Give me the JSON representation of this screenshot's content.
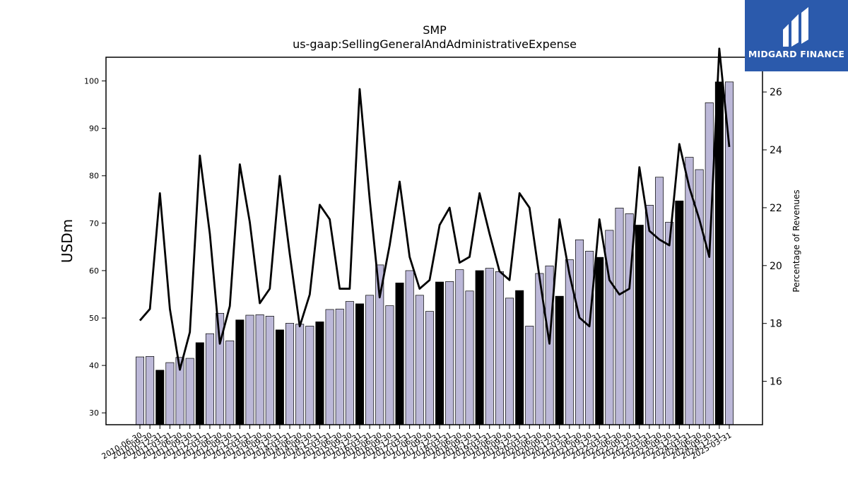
{
  "brand": {
    "name": "MIDGARD FINANCE",
    "background": "#2b5aac"
  },
  "chart_data": {
    "type": "bar",
    "title": "SMP",
    "subtitle": "us-gaap:SellingGeneralAndAdministrativeExpense",
    "ylabel": "USDm",
    "y2label": "Percentage of Revenues",
    "ylim": [
      27.5,
      105
    ],
    "y2lim": [
      14.5,
      27.2
    ],
    "yticks": [
      30,
      40,
      50,
      60,
      70,
      80,
      90,
      100
    ],
    "y2ticks": [
      16,
      18,
      20,
      22,
      24,
      26
    ],
    "colors": {
      "bar": "#bcb8d8",
      "bar_annual": "#000000",
      "line": "#000000"
    },
    "grid": false,
    "categories": [
      "2010-06-30",
      "2010-09-30",
      "2010-12-31",
      "2011-03-31",
      "2011-06-30",
      "2011-09-30",
      "2011-12-31",
      "2012-03-31",
      "2012-06-30",
      "2012-09-30",
      "2012-12-31",
      "2013-03-31",
      "2013-06-30",
      "2013-09-30",
      "2013-12-31",
      "2014-03-31",
      "2014-06-30",
      "2014-09-30",
      "2014-12-31",
      "2015-03-31",
      "2015-06-30",
      "2015-09-30",
      "2015-12-31",
      "2016-03-31",
      "2016-06-30",
      "2016-09-30",
      "2016-12-31",
      "2017-03-31",
      "2017-06-30",
      "2017-09-30",
      "2017-12-31",
      "2018-03-31",
      "2018-06-30",
      "2018-09-30",
      "2018-12-31",
      "2019-03-31",
      "2019-06-30",
      "2019-09-30",
      "2019-12-31",
      "2020-03-31",
      "2020-06-30",
      "2020-09-30",
      "2020-12-31",
      "2021-03-31",
      "2021-06-30",
      "2021-09-30",
      "2021-12-31",
      "2022-03-31",
      "2022-06-30",
      "2022-09-30",
      "2022-12-31",
      "2023-03-31",
      "2023-06-30",
      "2023-09-30",
      "2023-12-31",
      "2024-03-31",
      "2024-06-30",
      "2024-09-30",
      "2024-12-31",
      "2025-03-31"
    ],
    "tick_labels": [
      "2010-06-30",
      "2010-09-30",
      "2010-12-31",
      "2011-03-31",
      "2011-06-30",
      "2011-09-30",
      "2011-12-31",
      "2012-03-31",
      "2012-06-30",
      "2012-09-30",
      "2012-12-31",
      "2013-03-31",
      "2013-06-30",
      "2013-09-30",
      "2013-12-31",
      "2014-03-31",
      "2014-06-30",
      "2014-09-30",
      "2014-12-31",
      "2015-03-31",
      "2015-06-30",
      "2015-09-30",
      "2015-12-31",
      "2016-03-31",
      "2016-06-30",
      "2016-09-30",
      "2016-12-31",
      "2017-03-31",
      "2017-06-30",
      "2017-09-30",
      "2017-12-31",
      "2018-03-31",
      "2018-06-30",
      "2018-09-30",
      "2018-12-31",
      "2019-03-31",
      "2019-06-30",
      "2019-09-30",
      "2019-12-31",
      "2020-03-31",
      "2020-06-30",
      "2020-09-30",
      "2020-12-31",
      "2021-03-31",
      "2021-06-30",
      "2021-09-30",
      "2021-12-31",
      "2022-03-31",
      "2022-06-30",
      "2022-09-30",
      "2022-12-31",
      "2023-03-31",
      "2023-06-30",
      "2023-09-30",
      "2023-12-31",
      "2024-03-31",
      "2024-06-30",
      "2024-09-30",
      "2024-12-31",
      "2025-03-31"
    ],
    "series": [
      {
        "type": "bar",
        "axis": "left",
        "values": [
          41.8,
          41.9,
          39.0,
          40.6,
          41.7,
          41.5,
          44.8,
          46.7,
          51.0,
          45.2,
          49.6,
          50.6,
          50.7,
          50.4,
          47.5,
          48.9,
          48.7,
          48.3,
          49.2,
          51.8,
          51.9,
          53.5,
          53.0,
          54.8,
          61.2,
          52.6,
          57.4,
          60.0,
          54.8,
          51.4,
          57.6,
          57.7,
          60.2,
          55.7,
          60.0,
          60.5,
          59.8,
          54.2,
          55.8,
          48.3,
          59.4,
          61.0,
          54.6,
          62.3,
          66.5,
          64.1,
          62.8,
          68.5,
          73.2,
          72.0,
          69.6,
          73.8,
          79.7,
          70.2,
          74.7,
          83.9,
          81.3,
          95.4,
          99.8,
          99.8
        ]
      },
      {
        "type": "line",
        "axis": "right",
        "values": [
          18.1,
          18.5,
          22.5,
          18.5,
          16.4,
          17.7,
          23.8,
          21.1,
          17.3,
          18.6,
          23.5,
          21.5,
          18.7,
          19.2,
          23.1,
          20.4,
          17.9,
          19.0,
          22.1,
          21.6,
          19.2,
          19.2,
          26.1,
          22.3,
          18.9,
          20.7,
          22.9,
          20.3,
          19.2,
          19.5,
          21.4,
          22.0,
          20.1,
          20.3,
          22.5,
          21.1,
          19.8,
          19.5,
          22.5,
          22.0,
          19.6,
          17.3,
          21.6,
          19.7,
          18.2,
          17.9,
          21.6,
          19.5,
          19.0,
          19.2,
          23.4,
          21.2,
          20.9,
          20.7,
          24.2,
          22.7,
          21.6,
          20.3,
          27.5,
          24.1
        ]
      }
    ]
  }
}
